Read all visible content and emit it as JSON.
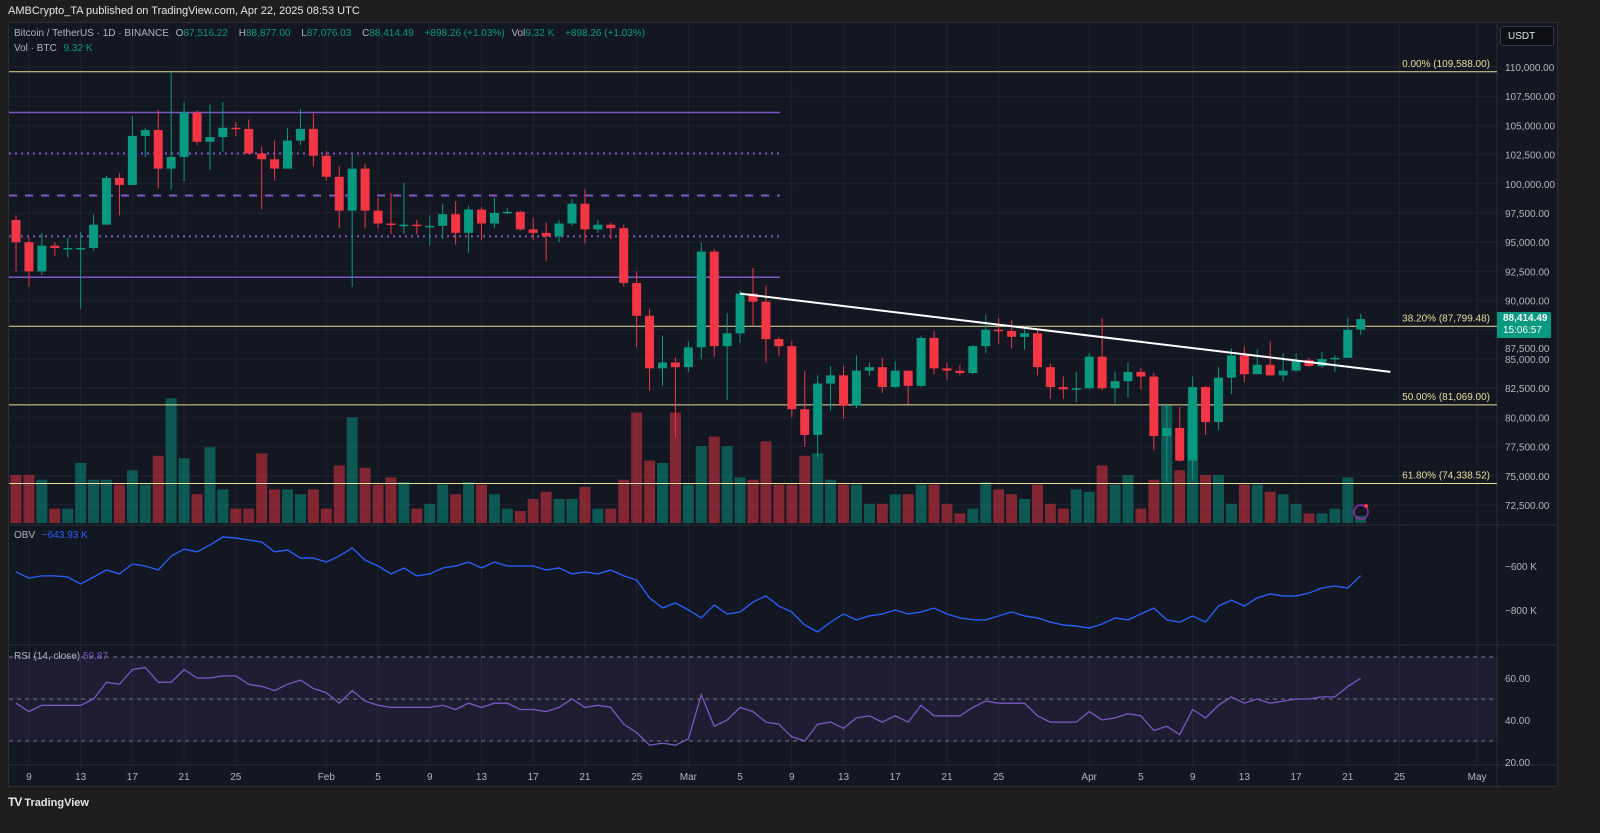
{
  "publish_line": "AMBCrypto_TA published on TradingView.com, Apr 22, 2025 08:53 UTC",
  "legend": {
    "symbol": "Bitcoin / TetherUS · 1D · BINANCE",
    "o_label": "O",
    "o": "87,516.22",
    "h_label": "H",
    "h": "88,877.00",
    "l_label": "L",
    "l": "87,076.03",
    "c_label": "C",
    "c": "88,414.49",
    "change": "+898.26 (+1.03%)",
    "vol_label": "Vol",
    "vol": "9.32 K",
    "vol_change": "+898.26 (+1.03%)",
    "vol_line_label": "Vol · BTC",
    "vol_line_value": "9.32 K"
  },
  "currency_button": "USDT",
  "last_price": {
    "price": "88,414.49",
    "countdown": "15:06:57"
  },
  "obv_legend": {
    "label": "OBV",
    "value": "−643.93 K"
  },
  "rsi_legend": {
    "label": "RSI (14, close)",
    "value": "59.87"
  },
  "brand": "TradingView",
  "colors": {
    "up": "#089981",
    "down": "#f23645",
    "fib": "#e9dd9b",
    "levels": "#7e57c2",
    "obv": "#2962ff",
    "rsi": "#7e57c2",
    "trendline": "#ffffff"
  },
  "chart_data": {
    "type": "candlestick",
    "title": "Bitcoin / TetherUS · 1D · BINANCE",
    "start_date": "2025-01-08",
    "price_unit": "thousand USDT",
    "price_axis": {
      "range": [
        71.5,
        113
      ],
      "ticks": [
        "110,000.00",
        "107,500.00",
        "105,000.00",
        "102,500.00",
        "100,000.00",
        "97,500.00",
        "95,000.00",
        "92,500.00",
        "90,000.00",
        "87,500.00",
        "85,000.00",
        "82,500.00",
        "80,000.00",
        "77,500.00",
        "75,000.00",
        "72,500.00"
      ],
      "tick_values": [
        110,
        107.5,
        105,
        102.5,
        100,
        97.5,
        95,
        92.5,
        90,
        87.5,
        85,
        82.5,
        80,
        77.5,
        75,
        72.5
      ]
    },
    "time_axis": {
      "labels": [
        "9",
        "13",
        "17",
        "21",
        "25",
        "Feb",
        "5",
        "9",
        "13",
        "17",
        "21",
        "25",
        "Mar",
        "5",
        "9",
        "13",
        "17",
        "21",
        "25",
        "Apr",
        "5",
        "9",
        "13",
        "17",
        "21",
        "25",
        "May"
      ],
      "day_index": [
        1,
        5,
        9,
        13,
        17,
        24,
        28,
        32,
        36,
        40,
        44,
        48,
        52,
        56,
        60,
        64,
        68,
        72,
        76,
        83,
        87,
        91,
        95,
        99,
        103,
        107,
        113
      ]
    },
    "ohlc": [
      [
        96.9,
        97.3,
        92.5,
        95.0
      ],
      [
        95.0,
        95.4,
        91.2,
        92.5
      ],
      [
        92.5,
        95.8,
        92.2,
        94.7
      ],
      [
        94.7,
        95.0,
        93.8,
        94.5
      ],
      [
        94.5,
        95.4,
        93.7,
        94.5
      ],
      [
        94.5,
        95.9,
        89.3,
        94.5
      ],
      [
        94.5,
        97.4,
        94.3,
        96.5
      ],
      [
        96.5,
        100.7,
        96.5,
        100.5
      ],
      [
        100.5,
        100.9,
        97.3,
        99.9
      ],
      [
        99.9,
        105.8,
        99.9,
        104.1
      ],
      [
        104.1,
        104.8,
        102.3,
        104.6
      ],
      [
        104.6,
        106.3,
        99.6,
        101.3
      ],
      [
        101.3,
        109.6,
        99.5,
        102.3
      ],
      [
        102.3,
        107.0,
        100.2,
        106.1
      ],
      [
        106.1,
        106.3,
        103.3,
        103.6
      ],
      [
        103.6,
        106.8,
        101.2,
        104.0
      ],
      [
        104.0,
        107.0,
        102.7,
        104.8
      ],
      [
        104.8,
        105.3,
        104.1,
        104.7
      ],
      [
        104.7,
        105.5,
        102.5,
        102.6
      ],
      [
        102.6,
        103.2,
        97.8,
        102.1
      ],
      [
        102.1,
        103.7,
        100.3,
        101.3
      ],
      [
        101.3,
        104.8,
        101.3,
        103.7
      ],
      [
        103.7,
        106.4,
        103.3,
        104.7
      ],
      [
        104.7,
        106.0,
        101.5,
        102.4
      ],
      [
        102.4,
        102.8,
        100.3,
        100.6
      ],
      [
        100.6,
        101.5,
        96.2,
        97.7
      ],
      [
        97.7,
        102.5,
        91.2,
        101.3
      ],
      [
        101.3,
        101.7,
        96.2,
        97.7
      ],
      [
        97.7,
        98.8,
        96.2,
        96.6
      ],
      [
        96.6,
        99.2,
        95.7,
        96.5
      ],
      [
        96.5,
        100.1,
        95.7,
        96.5
      ],
      [
        96.5,
        96.9,
        95.7,
        96.4
      ],
      [
        96.4,
        97.3,
        94.7,
        96.4
      ],
      [
        96.4,
        98.3,
        95.3,
        97.4
      ],
      [
        97.4,
        98.5,
        94.8,
        95.8
      ],
      [
        95.8,
        98.1,
        94.1,
        97.8
      ],
      [
        97.8,
        98.0,
        95.2,
        96.6
      ],
      [
        96.6,
        98.8,
        96.2,
        97.5
      ],
      [
        97.5,
        97.9,
        97.4,
        97.6
      ],
      [
        97.6,
        97.7,
        96.0,
        96.1
      ],
      [
        96.1,
        97.1,
        95.2,
        95.8
      ],
      [
        95.8,
        96.7,
        93.4,
        95.5
      ],
      [
        95.5,
        96.9,
        95.0,
        96.6
      ],
      [
        96.6,
        98.7,
        96.4,
        98.3
      ],
      [
        98.3,
        99.5,
        94.9,
        96.1
      ],
      [
        96.1,
        96.9,
        95.8,
        96.5
      ],
      [
        96.5,
        96.7,
        95.3,
        96.2
      ],
      [
        96.2,
        96.5,
        91.2,
        91.5
      ],
      [
        91.5,
        92.5,
        86.0,
        88.7
      ],
      [
        88.7,
        89.3,
        82.3,
        84.2
      ],
      [
        84.2,
        87.0,
        82.7,
        84.7
      ],
      [
        84.7,
        85.1,
        78.3,
        84.3
      ],
      [
        84.3,
        86.5,
        83.9,
        86.0
      ],
      [
        86.0,
        95.0,
        85.0,
        94.2
      ],
      [
        94.2,
        94.4,
        85.2,
        86.1
      ],
      [
        86.1,
        88.9,
        81.5,
        87.2
      ],
      [
        87.2,
        90.9,
        86.4,
        90.6
      ],
      [
        90.6,
        92.8,
        87.8,
        89.9
      ],
      [
        89.9,
        91.3,
        84.7,
        86.7
      ],
      [
        86.7,
        86.9,
        85.3,
        86.1
      ],
      [
        86.1,
        86.5,
        80.0,
        80.7
      ],
      [
        80.7,
        84.0,
        77.5,
        78.5
      ],
      [
        78.5,
        83.6,
        76.6,
        82.9
      ],
      [
        82.9,
        84.4,
        80.6,
        83.6
      ],
      [
        83.6,
        84.4,
        79.9,
        81.0
      ],
      [
        81.0,
        85.3,
        80.8,
        84.0
      ],
      [
        84.0,
        84.7,
        83.6,
        84.3
      ],
      [
        84.3,
        85.1,
        82.1,
        82.6
      ],
      [
        82.6,
        84.8,
        82.5,
        84.0
      ],
      [
        84.0,
        84.0,
        81.1,
        82.7
      ],
      [
        82.7,
        87.0,
        82.6,
        86.8
      ],
      [
        86.8,
        87.4,
        83.7,
        84.2
      ],
      [
        84.2,
        84.7,
        83.2,
        84.0
      ],
      [
        84.0,
        84.5,
        83.6,
        83.8
      ],
      [
        83.8,
        86.2,
        83.7,
        86.1
      ],
      [
        86.1,
        88.8,
        85.5,
        87.5
      ],
      [
        87.5,
        88.5,
        86.3,
        87.4
      ],
      [
        87.4,
        88.3,
        85.9,
        86.9
      ],
      [
        86.9,
        87.8,
        85.8,
        87.2
      ],
      [
        87.2,
        87.5,
        83.6,
        84.3
      ],
      [
        84.3,
        84.6,
        81.6,
        82.6
      ],
      [
        82.6,
        83.5,
        81.6,
        82.4
      ],
      [
        82.4,
        83.9,
        81.3,
        82.5
      ],
      [
        82.5,
        85.5,
        82.4,
        85.2
      ],
      [
        85.2,
        88.5,
        82.3,
        82.5
      ],
      [
        82.5,
        83.9,
        81.2,
        83.1
      ],
      [
        83.1,
        84.7,
        81.7,
        83.9
      ],
      [
        83.9,
        84.2,
        82.4,
        83.5
      ],
      [
        83.5,
        83.8,
        77.2,
        78.4
      ],
      [
        78.4,
        81.2,
        74.5,
        79.1
      ],
      [
        79.1,
        80.9,
        76.2,
        76.3
      ],
      [
        76.3,
        83.5,
        74.6,
        82.6
      ],
      [
        82.6,
        82.7,
        78.5,
        79.6
      ],
      [
        79.6,
        84.3,
        78.9,
        83.4
      ],
      [
        83.4,
        85.9,
        82.0,
        85.3
      ],
      [
        85.3,
        86.1,
        83.0,
        83.7
      ],
      [
        83.7,
        85.8,
        83.7,
        84.5
      ],
      [
        84.5,
        86.5,
        83.6,
        83.6
      ],
      [
        83.6,
        85.5,
        83.1,
        84.0
      ],
      [
        84.0,
        85.5,
        83.9,
        84.9
      ],
      [
        84.9,
        85.1,
        84.3,
        84.4
      ],
      [
        84.4,
        85.6,
        84.2,
        85.0
      ],
      [
        85.0,
        85.3,
        83.9,
        85.1
      ],
      [
        85.1,
        88.5,
        85.1,
        87.5
      ],
      [
        87.516,
        88.877,
        87.076,
        88.414
      ]
    ],
    "volume_k": [
      10,
      10,
      9,
      3,
      3,
      12.5,
      9,
      9,
      8,
      11,
      8,
      14,
      26,
      13.5,
      6,
      15.8,
      7,
      3,
      3,
      14.5,
      7,
      7,
      6,
      7,
      3,
      12,
      22,
      11.5,
      8,
      9.5,
      8.5,
      3,
      4,
      8,
      6,
      8.5,
      8,
      6,
      3,
      2.5,
      5,
      6.5,
      5,
      5,
      7.5,
      3,
      3,
      9,
      23,
      13,
      12.5,
      23,
      8,
      16,
      18,
      16,
      9.5,
      9,
      17,
      8,
      8,
      14,
      14.5,
      9,
      8,
      8,
      4,
      4,
      6,
      6,
      8,
      8,
      4,
      2,
      3,
      8.5,
      7,
      6,
      5,
      8,
      4,
      3,
      7,
      6.5,
      12,
      8,
      10,
      3,
      9,
      24.5,
      11,
      24.5,
      10,
      10,
      4,
      8,
      8,
      6.5,
      6,
      4,
      2,
      2,
      3,
      9.5,
      1.5
    ],
    "obv_k": {
      "axis_ticks": [
        "−600 K",
        "−800 K"
      ],
      "tick_values": [
        -600,
        -800
      ],
      "values": [
        -627,
        -655,
        -645,
        -645,
        -650,
        -682,
        -650,
        -618,
        -636,
        -591,
        -600,
        -618,
        -555,
        -523,
        -536,
        -505,
        -468,
        -473,
        -482,
        -491,
        -536,
        -527,
        -564,
        -564,
        -582,
        -555,
        -518,
        -573,
        -600,
        -636,
        -609,
        -645,
        -636,
        -609,
        -600,
        -582,
        -609,
        -582,
        -600,
        -600,
        -600,
        -618,
        -609,
        -636,
        -627,
        -636,
        -618,
        -645,
        -664,
        -745,
        -791,
        -768,
        -800,
        -836,
        -777,
        -818,
        -809,
        -764,
        -736,
        -782,
        -809,
        -868,
        -900,
        -855,
        -818,
        -845,
        -827,
        -818,
        -800,
        -818,
        -809,
        -791,
        -818,
        -836,
        -845,
        -845,
        -827,
        -809,
        -827,
        -836,
        -855,
        -868,
        -873,
        -882,
        -864,
        -836,
        -845,
        -818,
        -791,
        -845,
        -855,
        -827,
        -855,
        -782,
        -755,
        -782,
        -745,
        -727,
        -736,
        -736,
        -723,
        -700,
        -691,
        -700,
        -643.93
      ]
    },
    "rsi": {
      "axis_ticks": [
        "60.00",
        "40.00",
        "20.00"
      ],
      "tick_values": [
        60,
        40,
        20
      ],
      "bands": [
        70,
        50,
        30
      ],
      "values": [
        48,
        44,
        47,
        47,
        47,
        47,
        50,
        58,
        57,
        64,
        65,
        58,
        58,
        64,
        60,
        60,
        61,
        61,
        57,
        56,
        54,
        57,
        59,
        55,
        53,
        48,
        54,
        49,
        47,
        46,
        46,
        46,
        46,
        47,
        45,
        48,
        46,
        48,
        48,
        45,
        45,
        44,
        46,
        50,
        46,
        47,
        46,
        38,
        34,
        28,
        29,
        28,
        31,
        52,
        37,
        40,
        46,
        44,
        39,
        38,
        32,
        30,
        38,
        39,
        36,
        41,
        42,
        39,
        42,
        39,
        47,
        42,
        42,
        42,
        46,
        49,
        48,
        48,
        48,
        42,
        39,
        39,
        39,
        44,
        40,
        41,
        43,
        42,
        35,
        37,
        33,
        45,
        41,
        47,
        51,
        48,
        50,
        48,
        49,
        50,
        50,
        51,
        51,
        56,
        59.87
      ]
    },
    "fib_levels": [
      {
        "label": "0.00% (109,588.00)",
        "price": 109.588
      },
      {
        "label": "38.20% (87,799.48)",
        "price": 87.79948
      },
      {
        "label": "50.00% (81,069.00)",
        "price": 81.069
      },
      {
        "label": "61.80% (74,338.52)",
        "price": 74.33852
      }
    ],
    "horizontal_levels": [
      {
        "price": 106.1,
        "style": "solid"
      },
      {
        "price": 102.6,
        "style": "dotted"
      },
      {
        "price": 99.0,
        "style": "dashed"
      },
      {
        "price": 95.5,
        "style": "dotted"
      },
      {
        "price": 92.0,
        "style": "solid"
      }
    ],
    "horizontal_levels_end_day": 59,
    "trendline": {
      "from": {
        "day": 56,
        "price": 90.6
      },
      "to": {
        "day": 106.3,
        "price": 83.9
      }
    }
  }
}
